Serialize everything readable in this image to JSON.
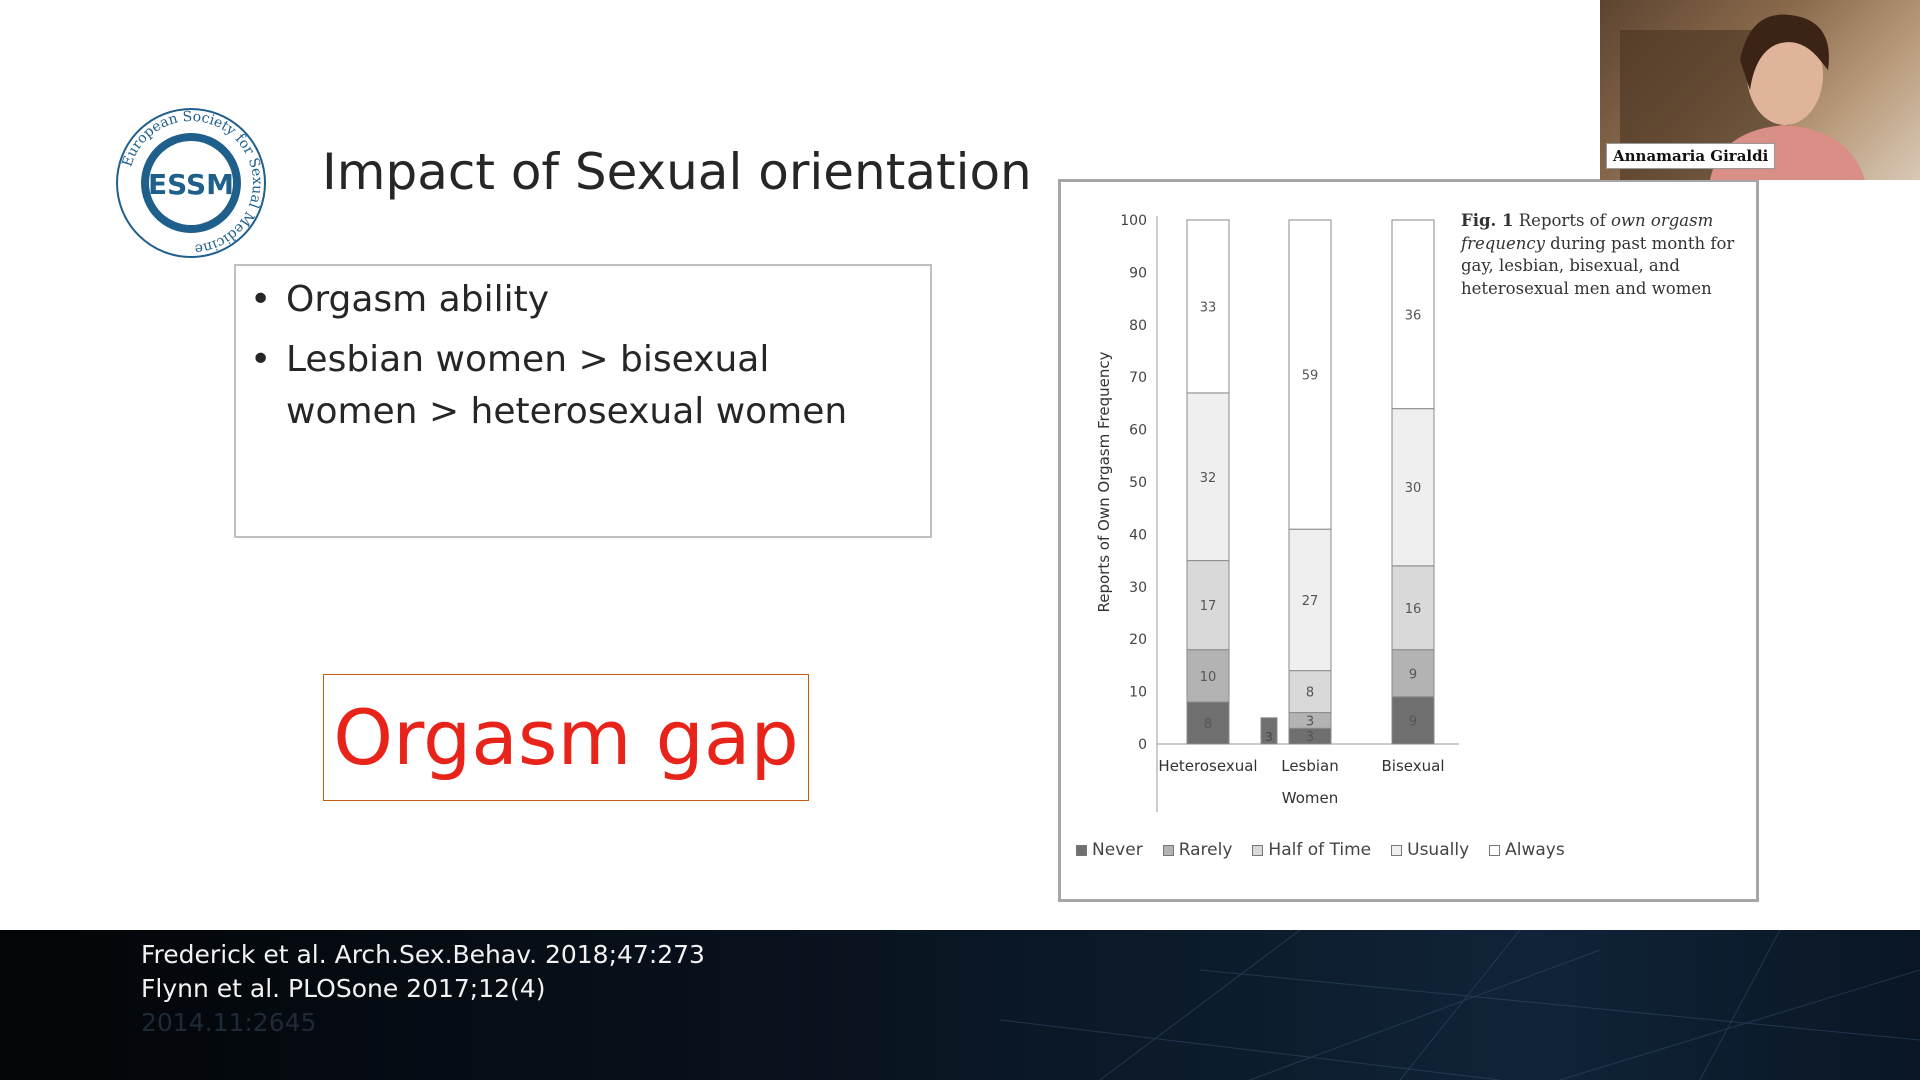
{
  "logo": {
    "arc_text": "European Society for Sexual Medicine",
    "monogram": "ESSM",
    "color": "#1f5f8b"
  },
  "slide": {
    "title": "Impact of Sexual orientation",
    "bullets": [
      "Orgasm ability",
      "Lesbian women > bisexual women > heterosexual women"
    ],
    "bullet_symbol": "•",
    "gap_label": "Orgasm gap"
  },
  "figure": {
    "caption_lead": "Fig. 1",
    "caption_pre": "Reports of ",
    "caption_italic": "own orgasm frequency",
    "caption_post": " during past month for gay, lesbian, bisexual, and heterosexual men and women"
  },
  "chart_data": {
    "type": "bar",
    "stacked": true,
    "ylabel": "Reports of Own Orgasm Frequency",
    "xlabel": "Women",
    "ylim": [
      0,
      100
    ],
    "yticks": [
      0,
      10,
      20,
      30,
      40,
      50,
      60,
      70,
      80,
      90,
      100
    ],
    "categories": [
      "Heterosexual",
      "Lesbian",
      "Bisexual"
    ],
    "series": [
      {
        "name": "Never",
        "values": [
          8,
          3,
          9
        ],
        "color": "#6f6f6f"
      },
      {
        "name": "Rarely",
        "values": [
          10,
          3,
          9
        ],
        "color": "#b3b3b3"
      },
      {
        "name": "Half of Time",
        "values": [
          17,
          8,
          16
        ],
        "color": "#d9d9d9"
      },
      {
        "name": "Usually",
        "values": [
          32,
          27,
          30
        ],
        "color": "#efefef"
      },
      {
        "name": "Always",
        "values": [
          33,
          59,
          36
        ],
        "color": "#ffffff"
      }
    ],
    "stray_bar": {
      "label": "3",
      "value": 5,
      "color": "#6f6f6f"
    },
    "legend_position": "bottom"
  },
  "references": [
    "Frederick et al. Arch.Sex.Behav. 2018;47:273",
    "Flynn et al. PLOSone 2017;12(4)",
    "2014.11:2645"
  ],
  "video": {
    "participant_name": "Annamaria Giraldi"
  }
}
